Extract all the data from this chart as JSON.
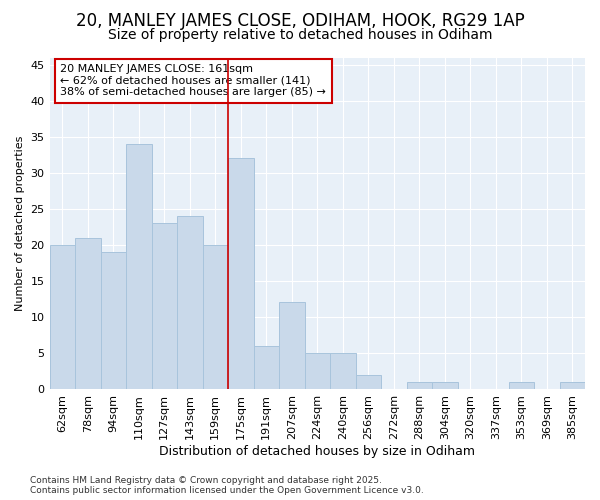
{
  "title1": "20, MANLEY JAMES CLOSE, ODIHAM, HOOK, RG29 1AP",
  "title2": "Size of property relative to detached houses in Odiham",
  "xlabel": "Distribution of detached houses by size in Odiham",
  "ylabel": "Number of detached properties",
  "bar_labels": [
    "62sqm",
    "78sqm",
    "94sqm",
    "110sqm",
    "127sqm",
    "143sqm",
    "159sqm",
    "175sqm",
    "191sqm",
    "207sqm",
    "224sqm",
    "240sqm",
    "256sqm",
    "272sqm",
    "288sqm",
    "304sqm",
    "320sqm",
    "337sqm",
    "353sqm",
    "369sqm",
    "385sqm"
  ],
  "bar_values": [
    20,
    21,
    19,
    34,
    23,
    24,
    20,
    32,
    6,
    12,
    5,
    5,
    2,
    0,
    1,
    1,
    0,
    0,
    1,
    0,
    1
  ],
  "bar_color": "#c9d9ea",
  "bar_edge_color": "#a8c4dc",
  "background_color": "#ffffff",
  "plot_bg_color": "#e8f0f8",
  "grid_color": "#ffffff",
  "vline_x": 6.5,
  "vline_color": "#cc0000",
  "annotation_text": "20 MANLEY JAMES CLOSE: 161sqm\n← 62% of detached houses are smaller (141)\n38% of semi-detached houses are larger (85) →",
  "annotation_box_color": "white",
  "annotation_box_edge": "#cc0000",
  "footer": "Contains HM Land Registry data © Crown copyright and database right 2025.\nContains public sector information licensed under the Open Government Licence v3.0.",
  "ylim": [
    0,
    46
  ],
  "yticks": [
    0,
    5,
    10,
    15,
    20,
    25,
    30,
    35,
    40,
    45
  ],
  "title1_fontsize": 12,
  "title2_fontsize": 10,
  "xlabel_fontsize": 9,
  "ylabel_fontsize": 8,
  "tick_fontsize": 8,
  "annotation_fontsize": 8,
  "footer_fontsize": 6.5
}
